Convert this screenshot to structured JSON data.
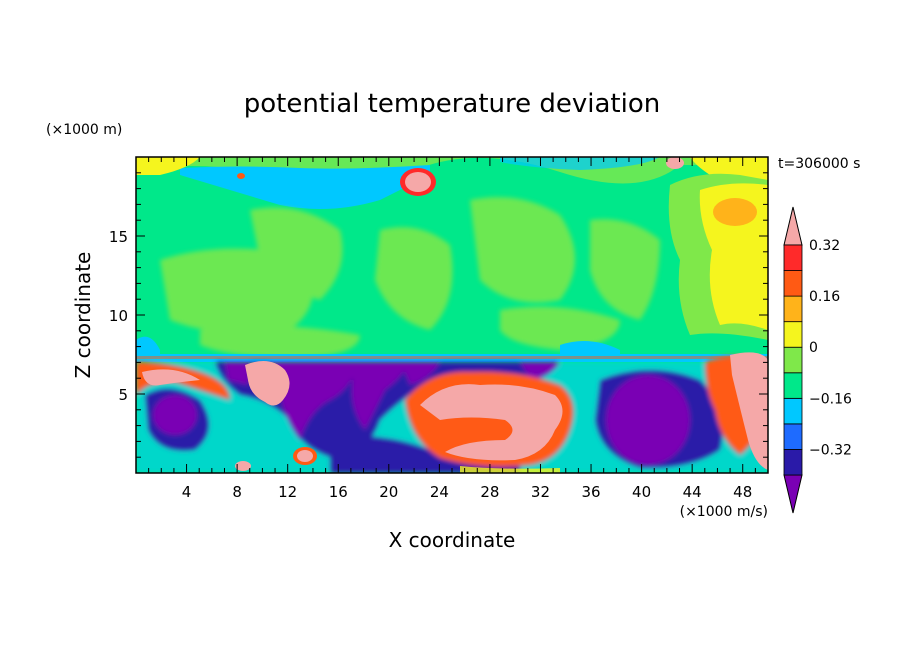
{
  "chart_data": {
    "type": "heatmap",
    "title": "potential temperature deviation",
    "xlabel": "X coordinate",
    "ylabel": "Z coordinate",
    "x_unit": "(×1000 m/s)",
    "y_unit": "(×1000 m)",
    "time_label": "t=306000 s",
    "xlim": [
      0,
      50
    ],
    "ylim": [
      0,
      20
    ],
    "x_ticks": [
      4,
      8,
      12,
      16,
      20,
      24,
      28,
      32,
      36,
      40,
      44,
      48
    ],
    "y_ticks": [
      5,
      10,
      15
    ],
    "colorbar": {
      "levels": [
        -0.4,
        -0.32,
        -0.24,
        -0.16,
        -0.08,
        0,
        0.08,
        0.16,
        0.24,
        0.32,
        0.4
      ],
      "labeled": [
        -0.32,
        -0.16,
        0,
        0.16,
        0.32
      ],
      "colors": [
        "#7a00b4",
        "#2a1aa8",
        "#1e6bff",
        "#00c8ff",
        "#00e88a",
        "#7fe84a",
        "#f5f51e",
        "#ffb31a",
        "#ff5a14",
        "#ff2a2a",
        "#f5a8a8"
      ],
      "extend": "both"
    },
    "regions": {
      "upper_layer_z_range": [
        7.5,
        20
      ],
      "upper_layer_dominant": 0.0,
      "lower_layer_z_range": [
        0,
        7.5
      ],
      "lower_layer_range": [
        -0.4,
        0.4
      ]
    }
  }
}
